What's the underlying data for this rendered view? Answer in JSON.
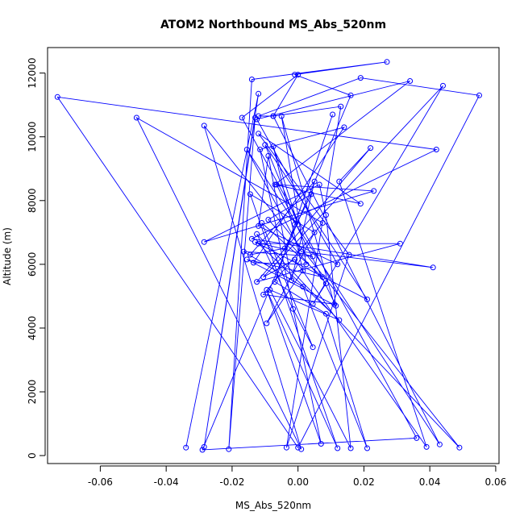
{
  "chart_data": {
    "type": "line",
    "title": "ATOM2 Northbound MS_Abs_520nm",
    "xlabel": "MS_Abs_520nm",
    "ylabel": "Altitude (m)",
    "xlim": [
      -0.076,
      0.061
    ],
    "ylim": [
      -250,
      12800
    ],
    "x_ticks": [
      -0.06,
      -0.04,
      -0.02,
      0.0,
      0.02,
      0.04,
      0.06
    ],
    "x_tick_labels": [
      "-0.06",
      "-0.04",
      "-0.02",
      "0.00",
      "0.02",
      "0.04",
      "0.06"
    ],
    "y_ticks": [
      0,
      2000,
      4000,
      6000,
      8000,
      10000,
      12000
    ],
    "y_tick_labels": [
      "0",
      "2000",
      "4000",
      "6000",
      "8000",
      "10000",
      "12000"
    ],
    "grid": false,
    "legend": "none",
    "series": [
      {
        "color": "#0000ff",
        "marker": "open-circle",
        "x": [
          -0.034,
          -0.012,
          -0.0285,
          -0.013,
          -0.021,
          -0.014,
          0.027,
          -0.001,
          0.016,
          -0.029,
          0.036,
          -0.017,
          0.0,
          -0.0075,
          0.043,
          -0.0155,
          0.001,
          0.041,
          -0.014,
          0.042,
          -0.073,
          0.0,
          0.055,
          0.019,
          -0.012,
          -0.0075,
          0.013,
          -0.0035,
          0.0155,
          -0.012,
          0.019,
          -0.007,
          0.034,
          -0.0125,
          0.012,
          -0.012,
          -0.009,
          -0.002,
          0.005,
          -0.0145,
          -0.004,
          0.004,
          -0.009,
          0.0085,
          0.0045,
          0.044,
          -0.0105,
          -0.001,
          0.039,
          0.0125,
          0.022,
          -0.0125,
          0.031,
          -0.012,
          0.0125,
          -0.0085,
          0.016,
          0.0085,
          0.0065,
          -0.0285,
          0.023,
          -0.0065,
          0.0115,
          -0.0155,
          0.0075,
          -0.011,
          0.0045,
          -0.0015,
          -0.0125,
          0.049,
          -0.0285,
          0.001,
          -0.049,
          0.0075,
          -0.0105,
          0.011,
          -0.005,
          0.0025,
          -0.0135,
          0.014,
          -0.0115,
          0.007,
          -0.0095,
          0.012,
          -0.0145,
          0.005,
          -0.0095,
          0.0015,
          -0.0075,
          0.0,
          -0.01,
          0.021,
          -0.013,
          0.0045,
          -0.0165,
          0.0015,
          0.021,
          0.0085,
          -0.007,
          0.0105,
          -0.001
        ],
        "y": [
          250,
          11350,
          270,
          10600,
          200,
          11800,
          12350,
          11950,
          11300,
          180,
          550,
          10600,
          11950,
          10650,
          350,
          9600,
          6400,
          5900,
          6800,
          9600,
          11250,
          250,
          11300,
          11850,
          10650,
          10650,
          10950,
          250,
          6300,
          10100,
          7900,
          8500,
          11750,
          10550,
          6000,
          7200,
          9400,
          5500,
          8600,
          6300,
          6500,
          8200,
          7400,
          5400,
          4750,
          11600,
          5600,
          6150,
          270,
          8600,
          9650,
          5450,
          6650,
          6650,
          4250,
          5200,
          230,
          7550,
          8500,
          6700,
          8300,
          8500,
          4700,
          6150,
          5600,
          7300,
          3400,
          4600,
          6950,
          250,
          10350,
          200,
          10600,
          7300,
          5050,
          4750,
          10650,
          6000,
          6050,
          10300,
          9600,
          370,
          5200,
          230,
          8200,
          7000,
          4150,
          5800,
          9700,
          7250,
          9750,
          4900,
          6700,
          6250,
          6400,
          5300,
          230,
          4450,
          5450,
          10700,
          7250
        ]
      }
    ]
  }
}
